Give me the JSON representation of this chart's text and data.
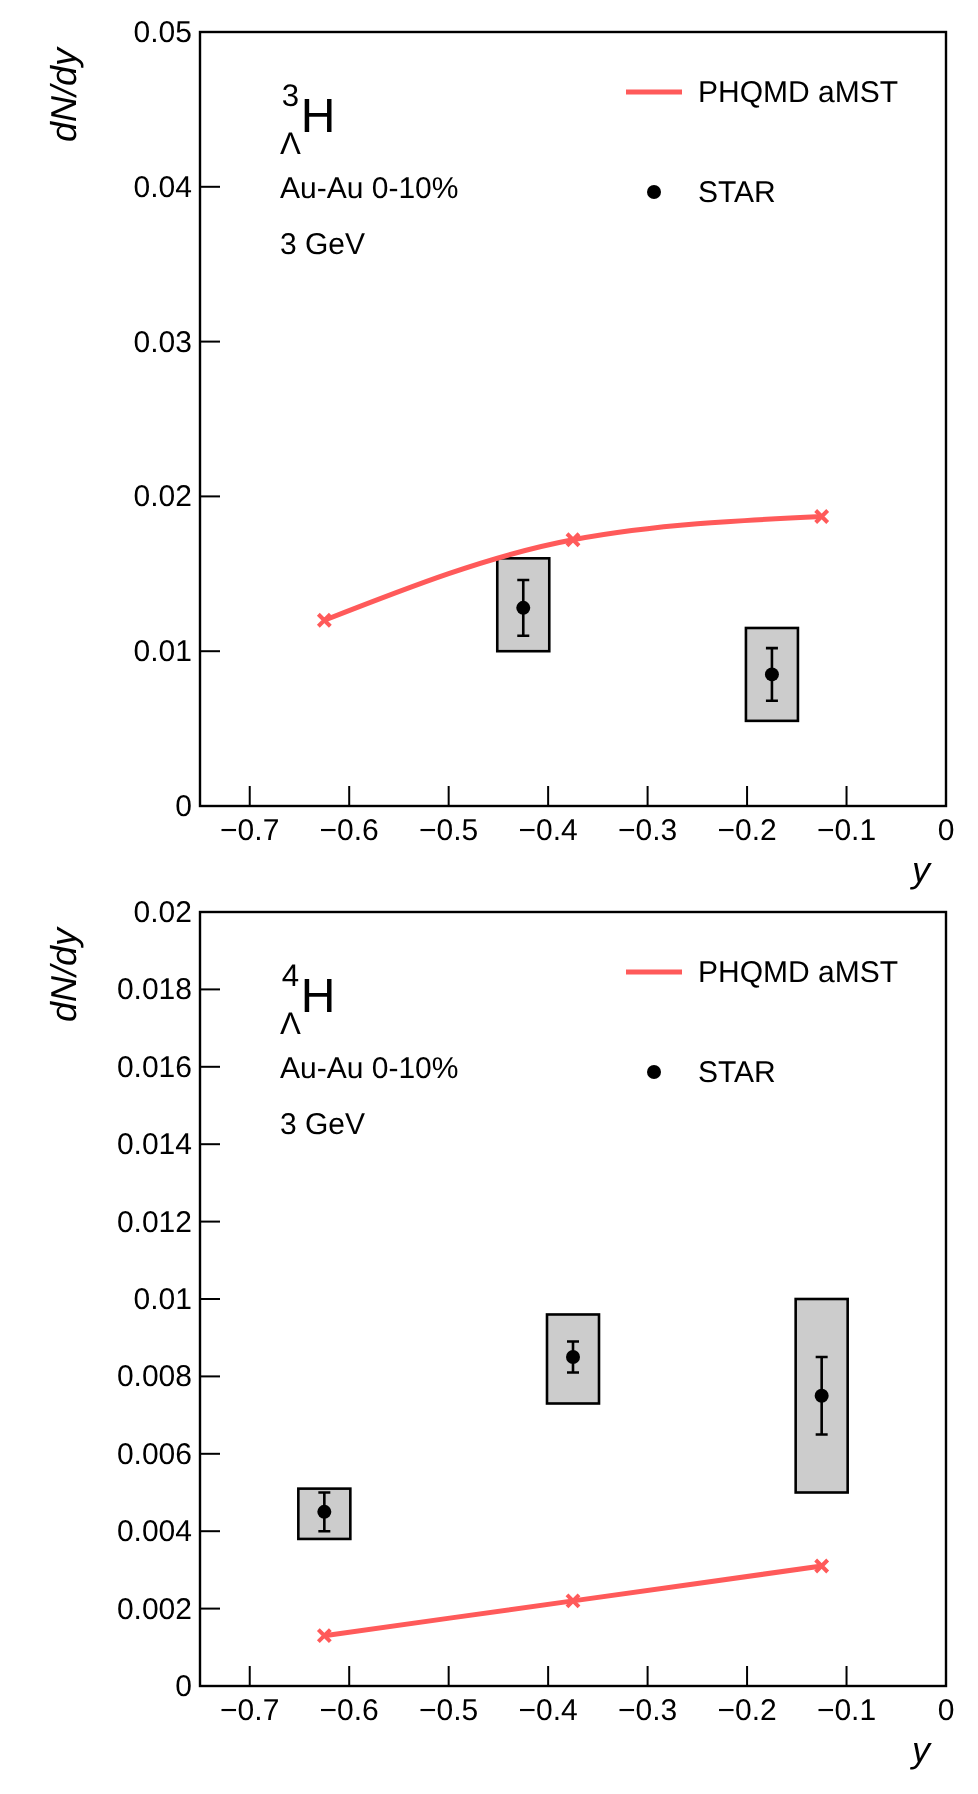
{
  "chart_data": [
    {
      "type": "scatter",
      "ylabel": "dN/dy",
      "xlabel": "y",
      "annotations": [
        "$^{3}$$_{Λ}$H",
        "Au-Au 0-10%",
        "3 GeV"
      ],
      "xlim": [
        -0.75,
        0
      ],
      "ylim": [
        0,
        0.05
      ],
      "xticks": [
        {
          "value": -0.7,
          "label": "−0.7"
        },
        {
          "value": -0.6,
          "label": "−0.6"
        },
        {
          "value": -0.5,
          "label": "−0.5"
        },
        {
          "value": -0.4,
          "label": "−0.4"
        },
        {
          "value": -0.3,
          "label": "−0.3"
        },
        {
          "value": -0.2,
          "label": "−0.2"
        },
        {
          "value": -0.1,
          "label": "−0.1"
        },
        0
      ],
      "yticks": [
        0,
        0.01,
        0.02,
        0.03,
        0.04,
        0.05
      ],
      "legend": "top right",
      "series": [
        {
          "type": "bar",
          "color": "#cccccc",
          "x": [
            -0.425,
            -0.175
          ],
          "base": [
            0.01,
            0.0055
          ],
          "values": [
            0.006,
            0.006
          ]
        },
        {
          "type": "line",
          "name": "PHQMD aMST",
          "color": "#ff5a5a",
          "x": [
            -0.625,
            -0.375,
            -0.125
          ],
          "values": [
            0.012,
            0.0172,
            0.0187
          ],
          "marker": "cross",
          "line_style": "solid"
        },
        {
          "name": "STAR",
          "color": "#000000",
          "x": [
            -0.425,
            -0.175
          ],
          "values": [
            0.0128,
            0.0085
          ],
          "errors": [
            0.0018,
            0.0017
          ],
          "marker": "circle"
        }
      ]
    },
    {
      "type": "scatter",
      "ylabel": "dN/dy",
      "xlabel": "y",
      "annotations": [
        "$^{4}$$_{Λ}$H",
        "Au-Au 0-10%",
        "3 GeV"
      ],
      "xlim": [
        -0.75,
        0
      ],
      "ylim": [
        0,
        0.02
      ],
      "xticks": [
        {
          "value": -0.7,
          "label": "−0.7"
        },
        {
          "value": -0.6,
          "label": "−0.6"
        },
        {
          "value": -0.5,
          "label": "−0.5"
        },
        {
          "value": -0.4,
          "label": "−0.4"
        },
        {
          "value": -0.3,
          "label": "−0.3"
        },
        {
          "value": -0.2,
          "label": "−0.2"
        },
        {
          "value": -0.1,
          "label": "−0.1"
        },
        0
      ],
      "yticks": [
        0,
        0.002,
        0.004,
        0.006,
        0.008,
        0.01,
        0.012,
        0.014,
        0.016,
        0.018,
        0.02
      ],
      "legend": "top right",
      "series": [
        {
          "type": "bar",
          "color": "#cccccc",
          "x": [
            -0.625,
            -0.375,
            -0.125
          ],
          "base": [
            0.0038,
            0.0073,
            0.005
          ],
          "values": [
            0.0013,
            0.0023,
            0.005
          ]
        },
        {
          "type": "line",
          "name": "PHQMD aMST",
          "color": "#ff5a5a",
          "x": [
            -0.625,
            -0.375,
            -0.125
          ],
          "values": [
            0.0013,
            0.0022,
            0.0031
          ],
          "marker": "cross",
          "line_style": "solid"
        },
        {
          "name": "STAR",
          "color": "#000000",
          "x": [
            -0.625,
            -0.375,
            -0.125
          ],
          "values": [
            0.0045,
            0.0085,
            0.0075
          ],
          "errors": [
            0.0005,
            0.0004,
            0.001
          ],
          "marker": "circle"
        }
      ]
    }
  ]
}
